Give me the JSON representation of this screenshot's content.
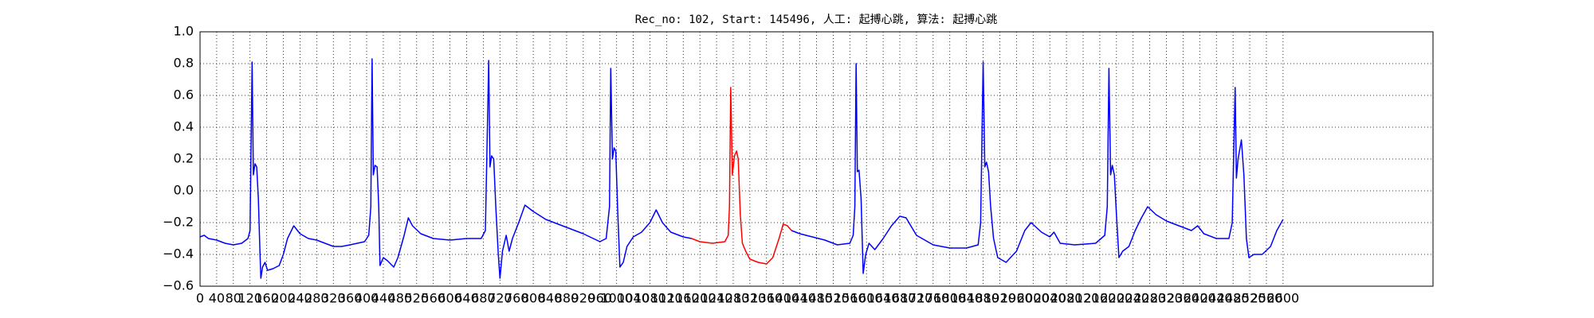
{
  "chart_data": {
    "type": "line",
    "title": "Rec_no: 102, Start: 145496, 人工: 起搏心跳, 算法: 起搏心跳",
    "xlim": [
      0,
      2960
    ],
    "xticks": [
      0,
      40,
      80,
      120,
      160,
      200,
      240,
      280,
      320,
      360,
      400,
      440,
      480,
      520,
      560,
      600,
      640,
      680,
      720,
      760,
      800,
      840,
      880,
      920,
      960,
      1000,
      1040,
      1080,
      1120,
      1160,
      1200,
      1240,
      1280,
      1320,
      1360,
      1400,
      1440,
      1480,
      1520,
      1560,
      1600,
      1640,
      1680,
      1720,
      1760,
      1800,
      1840,
      1880,
      1920,
      1960,
      2000,
      2040,
      2080,
      2120,
      2160,
      2200,
      2240,
      2280,
      2320,
      2360,
      2400,
      2440,
      2480,
      2520,
      2560,
      2600
    ],
    "ylim": [
      -0.6,
      1.0
    ],
    "yticks": [
      {
        "value": -0.6,
        "label": "−0.6"
      },
      {
        "value": -0.4,
        "label": "−0.4"
      },
      {
        "value": -0.2,
        "label": "−0.2"
      },
      {
        "value": 0,
        "label": "0.0"
      },
      0.2,
      0.4,
      0.6,
      0.8,
      {
        "value": 1.0,
        "label": "1.0"
      }
    ],
    "grid": true,
    "series": [
      {
        "color": "#0000ff",
        "x": [
          0,
          10,
          20,
          40,
          60,
          80,
          100,
          115,
          120,
          125,
          128,
          132,
          136,
          140,
          144,
          146,
          150,
          156,
          162,
          175,
          190,
          200,
          210,
          225,
          240,
          260,
          280,
          300,
          320,
          340,
          360,
          395,
          405,
          410,
          413,
          416,
          420,
          425,
          429,
          432,
          440,
          450,
          465,
          475,
          490,
          500,
          510,
          530,
          560,
          600,
          640,
          675,
          685,
          693,
          696,
          700,
          705,
          710,
          716,
          720,
          726,
          735,
          742,
          750,
          765,
          780,
          800,
          830,
          870,
          920,
          960,
          975,
          983,
          986,
          990,
          994,
          998,
          1003,
          1008,
          1016,
          1025,
          1040,
          1060,
          1080,
          1095,
          1110,
          1130,
          1160,
          1180,
          1300,
          1420,
          1440,
          1470,
          1500,
          1530,
          1560,
          1568,
          1572,
          1575,
          1578,
          1582,
          1587,
          1592,
          1598,
          1606,
          1620,
          1640,
          1660,
          1680,
          1695,
          1720,
          1760,
          1800,
          1840,
          1868,
          1874,
          1880,
          1884,
          1888,
          1893,
          1898,
          1905,
          1915,
          1935,
          1960,
          1980,
          1995,
          2020,
          2040,
          2050,
          2065,
          2100,
          2150,
          2172,
          2178,
          2182,
          2186,
          2190,
          2195,
          2200,
          2206,
          2215,
          2230,
          2245,
          2260,
          2275,
          2295,
          2320,
          2350,
          2380,
          2395,
          2410,
          2440,
          2470,
          2478,
          2485,
          2488,
          2492,
          2500,
          2506,
          2512,
          2518,
          2530,
          2550,
          2570,
          2585,
          2600
        ],
        "values": [
          -0.29,
          -0.28,
          -0.3,
          -0.31,
          -0.33,
          -0.34,
          -0.33,
          -0.3,
          -0.25,
          0.81,
          0.1,
          0.17,
          0.15,
          -0.05,
          -0.4,
          -0.55,
          -0.48,
          -0.45,
          -0.5,
          -0.49,
          -0.47,
          -0.4,
          -0.3,
          -0.22,
          -0.27,
          -0.3,
          -0.31,
          -0.33,
          -0.35,
          -0.35,
          -0.34,
          -0.32,
          -0.28,
          -0.1,
          0.83,
          0.1,
          0.16,
          0.15,
          -0.1,
          -0.47,
          -0.42,
          -0.44,
          -0.48,
          -0.42,
          -0.28,
          -0.17,
          -0.22,
          -0.27,
          -0.3,
          -0.31,
          -0.3,
          -0.3,
          -0.25,
          0.82,
          0.15,
          0.22,
          0.2,
          -0.1,
          -0.4,
          -0.55,
          -0.38,
          -0.28,
          -0.38,
          -0.3,
          -0.2,
          -0.09,
          -0.13,
          -0.18,
          -0.22,
          -0.27,
          -0.32,
          -0.3,
          -0.1,
          0.77,
          0.2,
          0.27,
          0.25,
          -0.15,
          -0.48,
          -0.45,
          -0.35,
          -0.29,
          -0.26,
          -0.2,
          -0.12,
          -0.2,
          -0.26,
          -0.29,
          -0.3,
          null,
          -0.25,
          -0.27,
          -0.29,
          -0.31,
          -0.34,
          -0.33,
          -0.28,
          -0.1,
          0.8,
          0.12,
          0.13,
          -0.05,
          -0.52,
          -0.4,
          -0.33,
          -0.37,
          -0.3,
          -0.22,
          -0.16,
          -0.17,
          -0.28,
          -0.34,
          -0.36,
          -0.36,
          -0.34,
          -0.2,
          0.81,
          0.15,
          0.18,
          0.12,
          -0.1,
          -0.3,
          -0.42,
          -0.45,
          -0.38,
          -0.25,
          -0.2,
          -0.26,
          -0.29,
          -0.26,
          -0.33,
          -0.34,
          -0.33,
          -0.28,
          -0.1,
          0.77,
          0.1,
          0.16,
          0.1,
          -0.15,
          -0.42,
          -0.38,
          -0.35,
          -0.25,
          -0.17,
          -0.1,
          -0.15,
          -0.19,
          -0.22,
          -0.25,
          -0.22,
          -0.27,
          -0.3,
          -0.3,
          -0.2,
          0.65,
          0.08,
          0.2,
          0.32,
          0.1,
          -0.3,
          -0.42,
          -0.4,
          -0.4,
          -0.35,
          -0.25,
          -0.18
        ]
      },
      {
        "color": "#ff0000",
        "x": [
          1180,
          1200,
          1230,
          1260,
          1268,
          1271,
          1274,
          1278,
          1283,
          1288,
          1292,
          1297,
          1302,
          1310,
          1320,
          1340,
          1360,
          1375,
          1390,
          1400,
          1410,
          1420
        ],
        "values": [
          -0.3,
          -0.32,
          -0.33,
          -0.32,
          -0.28,
          -0.1,
          0.65,
          0.1,
          0.22,
          0.25,
          0.2,
          -0.15,
          -0.33,
          -0.38,
          -0.43,
          -0.45,
          -0.46,
          -0.42,
          -0.3,
          -0.21,
          -0.22,
          -0.25
        ]
      }
    ]
  }
}
